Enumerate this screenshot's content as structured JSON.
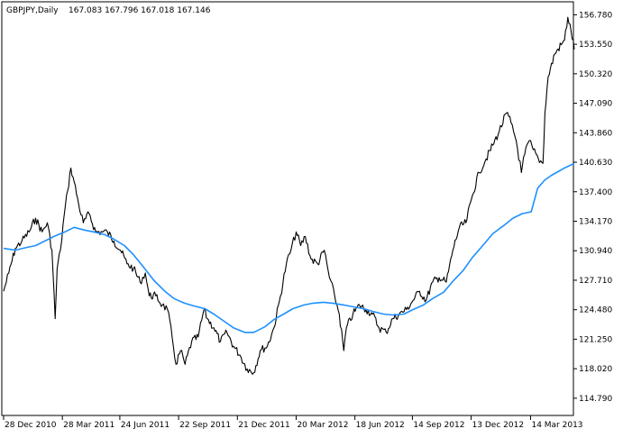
{
  "header": {
    "symbol": "GBPJPY,Daily",
    "ohlc": "167.083 167.796 167.018 167.146"
  },
  "colors": {
    "background": "#ffffff",
    "price": "#000000",
    "ma": "#1e90ff",
    "axis": "#000000"
  },
  "chart_data": {
    "type": "line",
    "title": "GBPJPY,Daily",
    "ylim": [
      112.9,
      158.2
    ],
    "y_ticks": [
      "156.780",
      "153.550",
      "150.320",
      "147.090",
      "143.860",
      "140.630",
      "137.400",
      "134.170",
      "130.940",
      "127.710",
      "124.480",
      "121.250",
      "118.020",
      "114.790"
    ],
    "x_ticks": [
      "28 Dec 2010",
      "28 Mar 2011",
      "24 Jun 2011",
      "22 Sep 2011",
      "21 Dec 2011",
      "20 Mar 2012",
      "18 Jun 2012",
      "14 Sep 2012",
      "13 Dec 2012",
      "14 Mar 2013"
    ],
    "x_start": "2010-12-28",
    "x_end": "2013-05-20",
    "series": [
      {
        "name": "",
        "kind": "price",
        "points": [
          [
            "2010-12-28",
            126.5
          ],
          [
            "2011-01-05",
            128.5
          ],
          [
            "2011-01-15",
            131.2
          ],
          [
            "2011-01-25",
            132.0
          ],
          [
            "2011-02-05",
            133.0
          ],
          [
            "2011-02-15",
            134.5
          ],
          [
            "2011-02-25",
            133.0
          ],
          [
            "2011-03-05",
            134.0
          ],
          [
            "2011-03-12",
            131.0
          ],
          [
            "2011-03-17",
            123.5
          ],
          [
            "2011-03-20",
            129.0
          ],
          [
            "2011-03-25",
            131.0
          ],
          [
            "2011-03-31",
            135.0
          ],
          [
            "2011-04-05",
            137.5
          ],
          [
            "2011-04-10",
            140.0
          ],
          [
            "2011-04-15",
            138.5
          ],
          [
            "2011-04-22",
            136.0
          ],
          [
            "2011-04-29",
            134.0
          ],
          [
            "2011-05-08",
            135.0
          ],
          [
            "2011-05-18",
            133.0
          ],
          [
            "2011-05-28",
            133.0
          ],
          [
            "2011-06-05",
            133.0
          ],
          [
            "2011-06-15",
            132.0
          ],
          [
            "2011-06-25",
            131.0
          ],
          [
            "2011-07-05",
            129.5
          ],
          [
            "2011-07-15",
            129.0
          ],
          [
            "2011-07-25",
            127.5
          ],
          [
            "2011-08-02",
            128.5
          ],
          [
            "2011-08-08",
            126.0
          ],
          [
            "2011-08-18",
            126.0
          ],
          [
            "2011-08-28",
            125.0
          ],
          [
            "2011-09-05",
            124.5
          ],
          [
            "2011-09-12",
            121.5
          ],
          [
            "2011-09-18",
            118.5
          ],
          [
            "2011-09-25",
            120.0
          ],
          [
            "2011-10-02",
            118.5
          ],
          [
            "2011-10-12",
            121.0
          ],
          [
            "2011-10-22",
            121.5
          ],
          [
            "2011-10-31",
            124.5
          ],
          [
            "2011-11-05",
            123.5
          ],
          [
            "2011-11-15",
            122.5
          ],
          [
            "2011-11-25",
            121.0
          ],
          [
            "2011-12-05",
            122.0
          ],
          [
            "2011-12-15",
            120.5
          ],
          [
            "2011-12-25",
            119.5
          ],
          [
            "2012-01-05",
            118.0
          ],
          [
            "2012-01-15",
            117.6
          ],
          [
            "2012-01-25",
            120.0
          ],
          [
            "2012-02-05",
            120.5
          ],
          [
            "2012-02-15",
            122.5
          ],
          [
            "2012-02-25",
            126.0
          ],
          [
            "2012-03-05",
            129.5
          ],
          [
            "2012-03-12",
            131.0
          ],
          [
            "2012-03-20",
            133.0
          ],
          [
            "2012-03-27",
            131.5
          ],
          [
            "2012-04-03",
            132.5
          ],
          [
            "2012-04-12",
            130.0
          ],
          [
            "2012-04-22",
            129.5
          ],
          [
            "2012-05-02",
            131.0
          ],
          [
            "2012-05-10",
            128.0
          ],
          [
            "2012-05-18",
            126.0
          ],
          [
            "2012-05-25",
            124.0
          ],
          [
            "2012-06-01",
            120.0
          ],
          [
            "2012-06-05",
            122.5
          ],
          [
            "2012-06-15",
            124.0
          ],
          [
            "2012-06-25",
            125.0
          ],
          [
            "2012-07-05",
            124.5
          ],
          [
            "2012-07-15",
            124.0
          ],
          [
            "2012-07-25",
            122.5
          ],
          [
            "2012-08-05",
            122.0
          ],
          [
            "2012-08-15",
            123.5
          ],
          [
            "2012-08-25",
            124.0
          ],
          [
            "2012-09-05",
            124.5
          ],
          [
            "2012-09-15",
            125.5
          ],
          [
            "2012-09-25",
            126.5
          ],
          [
            "2012-10-05",
            125.5
          ],
          [
            "2012-10-15",
            127.5
          ],
          [
            "2012-10-25",
            128.0
          ],
          [
            "2012-11-05",
            127.5
          ],
          [
            "2012-11-15",
            131.0
          ],
          [
            "2012-11-25",
            133.5
          ],
          [
            "2012-12-05",
            134.0
          ],
          [
            "2012-12-15",
            137.0
          ],
          [
            "2012-12-25",
            139.5
          ],
          [
            "2013-01-05",
            141.0
          ],
          [
            "2013-01-15",
            142.5
          ],
          [
            "2013-01-25",
            144.0
          ],
          [
            "2013-02-05",
            146.0
          ],
          [
            "2013-02-12",
            145.0
          ],
          [
            "2013-02-20",
            143.0
          ],
          [
            "2013-02-28",
            139.5
          ],
          [
            "2013-03-05",
            141.5
          ],
          [
            "2013-03-12",
            143.0
          ],
          [
            "2013-03-18",
            142.0
          ],
          [
            "2013-03-26",
            141.0
          ],
          [
            "2013-04-02",
            140.5
          ],
          [
            "2013-04-05",
            146.0
          ],
          [
            "2013-04-10",
            150.0
          ],
          [
            "2013-04-20",
            152.5
          ],
          [
            "2013-04-30",
            153.5
          ],
          [
            "2013-05-05",
            154.0
          ],
          [
            "2013-05-10",
            156.5
          ],
          [
            "2013-05-15",
            155.0
          ],
          [
            "2013-05-20",
            153.0
          ]
        ]
      },
      {
        "name": "",
        "kind": "moving-average",
        "points": [
          [
            "2010-12-28",
            131.2
          ],
          [
            "2011-01-15",
            131.0
          ],
          [
            "2011-02-01",
            131.3
          ],
          [
            "2011-02-15",
            131.5
          ],
          [
            "2011-03-01",
            132.0
          ],
          [
            "2011-03-15",
            132.5
          ],
          [
            "2011-04-01",
            133.0
          ],
          [
            "2011-04-15",
            133.5
          ],
          [
            "2011-05-01",
            133.2
          ],
          [
            "2011-05-15",
            133.0
          ],
          [
            "2011-06-01",
            132.7
          ],
          [
            "2011-06-15",
            132.2
          ],
          [
            "2011-07-01",
            131.5
          ],
          [
            "2011-07-15",
            130.5
          ],
          [
            "2011-08-01",
            129.0
          ],
          [
            "2011-08-15",
            127.7
          ],
          [
            "2011-09-01",
            126.5
          ],
          [
            "2011-09-15",
            125.7
          ],
          [
            "2011-10-01",
            125.2
          ],
          [
            "2011-10-15",
            124.9
          ],
          [
            "2011-11-01",
            124.6
          ],
          [
            "2011-11-15",
            124.0
          ],
          [
            "2011-12-01",
            123.2
          ],
          [
            "2011-12-15",
            122.5
          ],
          [
            "2012-01-01",
            122.0
          ],
          [
            "2012-01-15",
            122.0
          ],
          [
            "2012-02-01",
            122.6
          ],
          [
            "2012-02-15",
            123.4
          ],
          [
            "2012-03-01",
            124.0
          ],
          [
            "2012-03-15",
            124.6
          ],
          [
            "2012-04-01",
            125.0
          ],
          [
            "2012-04-15",
            125.2
          ],
          [
            "2012-05-01",
            125.3
          ],
          [
            "2012-05-15",
            125.2
          ],
          [
            "2012-06-01",
            125.0
          ],
          [
            "2012-06-15",
            124.8
          ],
          [
            "2012-07-01",
            124.6
          ],
          [
            "2012-07-15",
            124.3
          ],
          [
            "2012-08-01",
            124.0
          ],
          [
            "2012-08-15",
            123.9
          ],
          [
            "2012-09-01",
            124.0
          ],
          [
            "2012-09-15",
            124.5
          ],
          [
            "2012-10-01",
            125.0
          ],
          [
            "2012-10-15",
            125.7
          ],
          [
            "2012-11-01",
            126.4
          ],
          [
            "2012-11-15",
            127.6
          ],
          [
            "2012-12-01",
            128.8
          ],
          [
            "2012-12-15",
            130.2
          ],
          [
            "2013-01-01",
            131.6
          ],
          [
            "2013-01-15",
            132.8
          ],
          [
            "2013-02-01",
            133.7
          ],
          [
            "2013-02-15",
            134.5
          ],
          [
            "2013-03-01",
            135.0
          ],
          [
            "2013-03-15",
            135.2
          ],
          [
            "2013-03-25",
            137.8
          ],
          [
            "2013-04-05",
            138.7
          ],
          [
            "2013-04-15",
            139.2
          ],
          [
            "2013-04-25",
            139.6
          ],
          [
            "2013-05-05",
            140.0
          ],
          [
            "2013-05-20",
            140.5
          ]
        ]
      }
    ]
  }
}
